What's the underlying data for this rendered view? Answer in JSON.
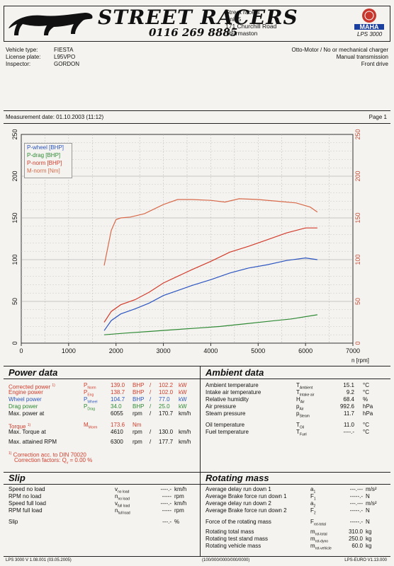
{
  "header": {
    "brand": "STREET RACERS",
    "phone": "0116 269 8885",
    "address": [
      "Street racers",
      "Unit 5",
      "171 Churchill Road",
      "Thurmaston"
    ],
    "logo_text": "MAHA",
    "model": "LPS 3000"
  },
  "vehicle": {
    "type_label": "Vehicle type:",
    "type_value": "FIESTA",
    "plate_label": "License plate:",
    "plate_value": "L95VPO",
    "inspector_label": "Inspector:",
    "inspector_value": "GORDON",
    "engine_desc": "Otto-Motor / No or mechanical charger",
    "transmission": "Manual transmission",
    "drive": "Front drive"
  },
  "measurement": {
    "date": "Measurement date: 01.10.2003 (11:12)",
    "page": "Page 1"
  },
  "chart_data": {
    "type": "line",
    "xlabel": "n [rpm]",
    "xlim": [
      0,
      7000
    ],
    "ylim": [
      0,
      250
    ],
    "x_ticks": [
      "0",
      "1000",
      "2000",
      "3000",
      "4000",
      "5000",
      "6000",
      "7000"
    ],
    "y_ticks": [
      "0",
      "50",
      "100",
      "150",
      "200",
      "250"
    ],
    "grid": true,
    "legend_position": "top-left",
    "series": [
      {
        "name": "P-wheel [BHP]",
        "color": "#2c55c0",
        "x": [
          1750,
          1900,
          2100,
          2400,
          2700,
          3000,
          3300,
          3600,
          4000,
          4400,
          4800,
          5200,
          5600,
          6000,
          6250
        ],
        "y": [
          15,
          27,
          35,
          41,
          48,
          57,
          63,
          69,
          76,
          84,
          90,
          94,
          99,
          102,
          100
        ]
      },
      {
        "name": "P-drag [BHP]",
        "color": "#2f8a35",
        "x": [
          1750,
          2200,
          2700,
          3200,
          3700,
          4200,
          4700,
          5200,
          5700,
          6250
        ],
        "y": [
          10,
          12,
          14,
          16,
          18,
          20,
          23,
          26,
          29,
          34
        ]
      },
      {
        "name": "P-norm [BHP]",
        "color": "#d23c2c",
        "x": [
          1750,
          1900,
          2100,
          2400,
          2700,
          3000,
          3300,
          3600,
          4000,
          4400,
          4800,
          5200,
          5600,
          6000,
          6250
        ],
        "y": [
          25,
          38,
          46,
          52,
          61,
          72,
          80,
          88,
          98,
          109,
          116,
          124,
          132,
          138,
          138
        ]
      },
      {
        "name": "M-norm [Nm]",
        "color": "#d86a4a",
        "x": [
          1750,
          1900,
          2000,
          2100,
          2300,
          2600,
          3000,
          3300,
          3600,
          4000,
          4300,
          4600,
          5000,
          5400,
          5800,
          6100,
          6250
        ],
        "y": [
          93,
          135,
          148,
          150,
          151,
          155,
          166,
          172,
          172,
          171,
          169,
          173,
          172,
          170,
          168,
          163,
          157
        ]
      }
    ]
  },
  "power_data": {
    "title": "Power data",
    "rows": [
      {
        "label": "Corrected power",
        "sup": "1)",
        "sym": "P",
        "sub": "Norm",
        "v1": "139.0",
        "u1": "BHP",
        "v2": "102.2",
        "u2": "kW",
        "cls": "red"
      },
      {
        "label": "Engine power",
        "sup": "",
        "sym": "P",
        "sub": "Eng",
        "v1": "138.7",
        "u1": "BHP",
        "v2": "102.0",
        "u2": "kW",
        "cls": "red"
      },
      {
        "label": "Wheel power",
        "sup": "",
        "sym": "P",
        "sub": "Wheel",
        "v1": "104.7",
        "u1": "BHP",
        "v2": "77.0",
        "u2": "kW",
        "cls": "blue"
      },
      {
        "label": "Drag power",
        "sup": "",
        "sym": "P",
        "sub": "Drag",
        "v1": "34.0",
        "u1": "BHP",
        "v2": "25.0",
        "u2": "kW",
        "cls": "green"
      },
      {
        "label": "Max. power at",
        "sup": "",
        "sym": "",
        "sub": "",
        "v1": "6055",
        "u1": "rpm",
        "v2": "170.7",
        "u2": "km/h",
        "cls": ""
      }
    ],
    "torque_label": "Torque",
    "torque_sup": "1)",
    "torque_sym": "M",
    "torque_sub": "Morm",
    "torque_value": "173.6",
    "torque_unit": "Nm",
    "max_torque_label": "Max. Torque at",
    "max_torque_rpm": "4610",
    "max_torque_rpm_unit": "rpm",
    "max_torque_speed": "130.0",
    "max_torque_speed_unit": "km/h",
    "max_rpm_label": "Max. attained RPM",
    "max_rpm": "6300",
    "max_rpm_unit": "rpm",
    "max_rpm_speed": "177.7",
    "max_rpm_speed_unit": "km/h",
    "correction_note": "Correction acc. to DIN 70020",
    "correction_factors": "Correction factors: Q",
    "correction_sub": "v",
    "correction_value": "=   0.00 %"
  },
  "ambient_data": {
    "title": "Ambient data",
    "rows": [
      {
        "label": "Ambient temperature",
        "sym": "T",
        "sub": "Ambient",
        "value": "15.1",
        "unit": "°C"
      },
      {
        "label": "Intake air temperature",
        "sym": "T",
        "sub": "Intake air",
        "value": "9.2",
        "unit": "°C"
      },
      {
        "label": "Relative humidity",
        "sym": "H",
        "sub": "Air",
        "value": "68.4",
        "unit": "%"
      },
      {
        "label": "Air pressure",
        "sym": "p",
        "sub": "Air",
        "value": "992.6",
        "unit": "hPa"
      },
      {
        "label": "Steam pressure",
        "sym": "p",
        "sub": "Steam",
        "value": "11.7",
        "unit": "hPa"
      },
      {
        "label": "Oil temperature",
        "sym": "T",
        "sub": "Oil",
        "value": "11.0",
        "unit": "°C"
      },
      {
        "label": "Fuel temperature",
        "sym": "T",
        "sub": "Fuel",
        "value": "----.-",
        "unit": "°C"
      }
    ]
  },
  "slip": {
    "title": "Slip",
    "rows": [
      {
        "label": "Speed no load",
        "sym": "v",
        "sub": "no load",
        "value": "----.-",
        "unit": "km/h"
      },
      {
        "label": "RPM no load",
        "sym": "n",
        "sub": "no load",
        "value": "-----",
        "unit": "rpm"
      },
      {
        "label": "Speed full load",
        "sym": "v",
        "sub": "full load",
        "value": "----.-",
        "unit": "km/h"
      },
      {
        "label": "RPM full load",
        "sym": "n",
        "sub": "full load",
        "value": "-----",
        "unit": "rpm"
      },
      {
        "label": "Slip",
        "sym": "",
        "sub": "",
        "value": "---.-",
        "unit": "%"
      }
    ]
  },
  "rotating_mass": {
    "title": "Rotating mass",
    "rows": [
      {
        "label": "Average delay run down 1",
        "sym": "a",
        "sub": "1",
        "value": "---.---",
        "unit": "m/s²"
      },
      {
        "label": "Average Brake force run down 1",
        "sym": "F",
        "sub": "1",
        "value": "-----.-",
        "unit": "N"
      },
      {
        "label": "Average delay run down 2",
        "sym": "a",
        "sub": "2",
        "value": "---.---",
        "unit": "m/s²"
      },
      {
        "label": "Average Brake force run down 2",
        "sym": "F",
        "sub": "2",
        "value": "-----.-",
        "unit": "N"
      },
      {
        "label": "Force of the rotating mass",
        "sym": "F",
        "sub": "rot-total",
        "value": "-----.-",
        "unit": "N"
      },
      {
        "label": "Rotating total mass",
        "sym": "m",
        "sub": "rot-total",
        "value": "310.0",
        "unit": "kg"
      },
      {
        "label": "Rotating test stand mass",
        "sym": "m",
        "sub": "rot-dyno",
        "value": "250.0",
        "unit": "kg"
      },
      {
        "label": "Rotating vehicle mass",
        "sym": "m",
        "sub": "rot-vehicle",
        "value": "60.0",
        "unit": "kg"
      }
    ]
  },
  "footer": {
    "left": "LPS 3000 V 1.08.001 (03.05.2005)",
    "center": "(100/000/0000/000/0000)",
    "right": "LPS-EURO V1.13.000"
  }
}
